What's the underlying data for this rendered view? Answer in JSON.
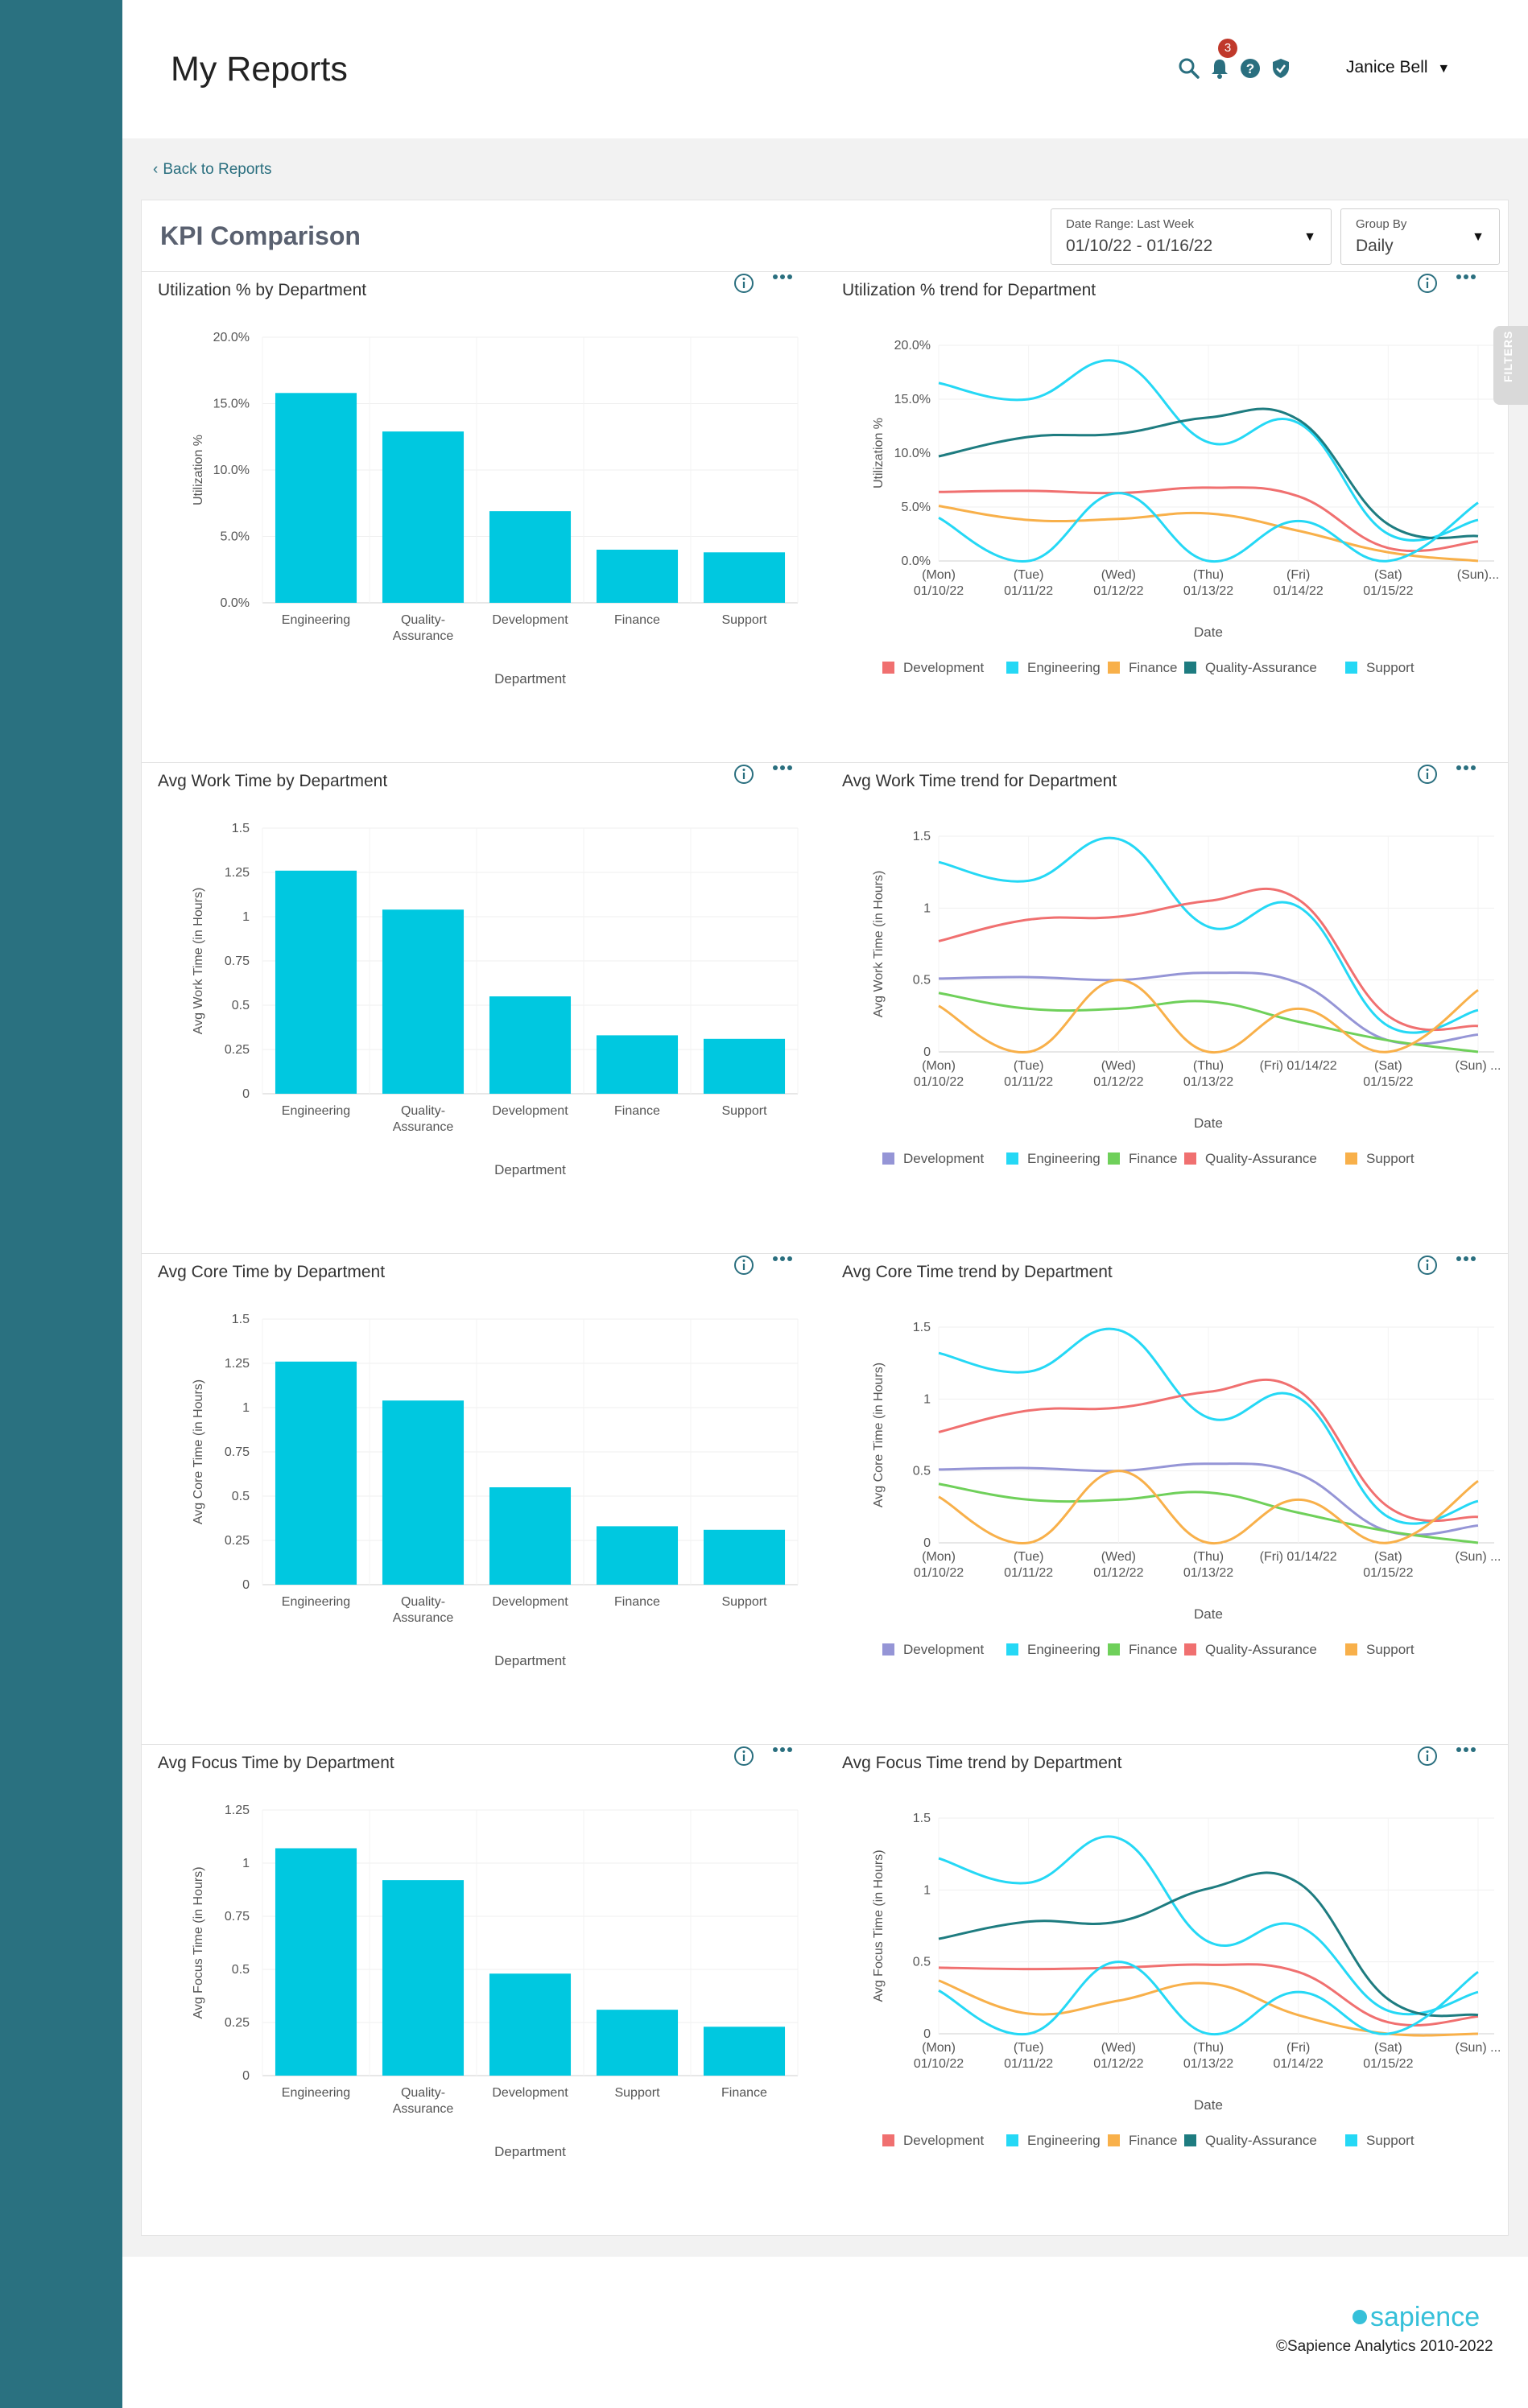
{
  "header": {
    "title": "My Reports",
    "notification_count": "3",
    "user_name": "Janice Bell",
    "icons": [
      "search-icon",
      "bell-icon",
      "help-icon",
      "shield-icon"
    ]
  },
  "back_link": "Back to Reports",
  "report": {
    "title": "KPI Comparison",
    "date_range": {
      "label": "Date Range: Last Week",
      "value": "01/10/22 - 01/16/22"
    },
    "group_by": {
      "label": "Group By",
      "value": "Daily"
    },
    "filters_tab": "FILTERS"
  },
  "colors": {
    "bar": "#00c8e0",
    "Development_purple": "#9595d6",
    "Development_red": "#f07070",
    "Engineering": "#25d8f5",
    "Finance_green": "#6fd05a",
    "Finance_orange": "#f8b04a",
    "Quality-Assurance_teal": "#1e7c80",
    "Quality-Assurance_red": "#f07070",
    "Support_cyan": "#25d8f5",
    "Support_orange": "#f8b04a",
    "sidebar": "#2a7180"
  },
  "chart_data": [
    {
      "id": "util-bar",
      "type": "bar",
      "title": "Utilization % by Department",
      "xlabel": "Department",
      "ylabel": "Utilization %",
      "categories": [
        "Engineering",
        "Quality-Assurance",
        "Development",
        "Finance",
        "Support"
      ],
      "values": [
        15.8,
        12.9,
        6.9,
        4.0,
        3.8
      ],
      "ylim": [
        0,
        20
      ],
      "yticks": [
        "0.0%",
        "5.0%",
        "10.0%",
        "15.0%",
        "20.0%"
      ],
      "ytick_values": [
        0,
        5,
        10,
        15,
        20
      ]
    },
    {
      "id": "util-trend",
      "type": "line",
      "title": "Utilization % trend for Department",
      "xlabel": "Date",
      "ylabel": "Utilization %",
      "x": [
        [
          "(Mon)",
          "01/10/22"
        ],
        [
          "(Tue)",
          "01/11/22"
        ],
        [
          "(Wed)",
          "01/12/22"
        ],
        [
          "(Thu)",
          "01/13/22"
        ],
        [
          "(Fri)",
          "01/14/22"
        ],
        [
          "(Sat)",
          "01/15/22"
        ],
        [
          "(Sun)...",
          ""
        ]
      ],
      "ylim": [
        0,
        20
      ],
      "yticks": [
        "0.0%",
        "5.0%",
        "10.0%",
        "15.0%",
        "20.0%"
      ],
      "ytick_values": [
        0,
        5,
        10,
        15,
        20
      ],
      "series": [
        {
          "name": "Development",
          "color": "#f07070",
          "values": [
            6.4,
            6.5,
            6.3,
            6.8,
            6.0,
            1.2,
            1.8
          ]
        },
        {
          "name": "Engineering",
          "color": "#25d8f5",
          "values": [
            16.5,
            15.0,
            18.5,
            11.0,
            12.8,
            2.5,
            3.8
          ]
        },
        {
          "name": "Finance",
          "color": "#f8b04a",
          "values": [
            5.1,
            3.8,
            3.9,
            4.4,
            2.8,
            0.8,
            0.0
          ]
        },
        {
          "name": "Quality-Assurance",
          "color": "#1e7c80",
          "values": [
            9.7,
            11.5,
            11.8,
            13.3,
            13.1,
            3.4,
            2.3
          ]
        },
        {
          "name": "Support",
          "color": "#25d8f5",
          "values": [
            4.0,
            0.0,
            6.3,
            0.0,
            3.7,
            0.0,
            5.4
          ]
        }
      ]
    },
    {
      "id": "work-bar",
      "type": "bar",
      "title": "Avg Work Time by Department",
      "xlabel": "Department",
      "ylabel": "Avg Work Time (in Hours)",
      "categories": [
        "Engineering",
        "Quality-Assurance",
        "Development",
        "Finance",
        "Support"
      ],
      "values": [
        1.26,
        1.04,
        0.55,
        0.33,
        0.31
      ],
      "ylim": [
        0,
        1.5
      ],
      "yticks": [
        "0",
        "0.25",
        "0.5",
        "0.75",
        "1",
        "1.25",
        "1.5"
      ],
      "ytick_values": [
        0,
        0.25,
        0.5,
        0.75,
        1,
        1.25,
        1.5
      ]
    },
    {
      "id": "work-trend",
      "type": "line",
      "title": "Avg Work Time trend for Department",
      "xlabel": "Date",
      "ylabel": "Avg Work Time (in Hours)",
      "x": [
        [
          "(Mon)",
          "01/10/22"
        ],
        [
          "(Tue)",
          "01/11/22"
        ],
        [
          "(Wed)",
          "01/12/22"
        ],
        [
          "(Thu)",
          "01/13/22"
        ],
        [
          "(Fri) 01/14/22",
          ""
        ],
        [
          "(Sat)",
          "01/15/22"
        ],
        [
          "(Sun) ...",
          ""
        ]
      ],
      "ylim": [
        0,
        1.5
      ],
      "yticks": [
        "0",
        "0.5",
        "1",
        "1.5"
      ],
      "ytick_values": [
        0,
        0.5,
        1,
        1.5
      ],
      "series": [
        {
          "name": "Development",
          "color": "#9595d6",
          "values": [
            0.51,
            0.52,
            0.5,
            0.55,
            0.48,
            0.08,
            0.12
          ]
        },
        {
          "name": "Engineering",
          "color": "#25d8f5",
          "values": [
            1.32,
            1.19,
            1.48,
            0.87,
            1.01,
            0.18,
            0.29
          ]
        },
        {
          "name": "Finance",
          "color": "#6fd05a",
          "values": [
            0.41,
            0.3,
            0.3,
            0.35,
            0.21,
            0.08,
            0.0
          ]
        },
        {
          "name": "Quality-Assurance",
          "color": "#f07070",
          "values": [
            0.77,
            0.92,
            0.94,
            1.05,
            1.06,
            0.25,
            0.18
          ]
        },
        {
          "name": "Support",
          "color": "#f8b04a",
          "values": [
            0.32,
            0.0,
            0.5,
            0.0,
            0.3,
            0.0,
            0.43
          ]
        }
      ]
    },
    {
      "id": "core-bar",
      "type": "bar",
      "title": "Avg Core Time by Department",
      "xlabel": "Department",
      "ylabel": "Avg Core Time (in Hours)",
      "categories": [
        "Engineering",
        "Quality-Assurance",
        "Development",
        "Finance",
        "Support"
      ],
      "values": [
        1.26,
        1.04,
        0.55,
        0.33,
        0.31
      ],
      "ylim": [
        0,
        1.5
      ],
      "yticks": [
        "0",
        "0.25",
        "0.5",
        "0.75",
        "1",
        "1.25",
        "1.5"
      ],
      "ytick_values": [
        0,
        0.25,
        0.5,
        0.75,
        1,
        1.25,
        1.5
      ]
    },
    {
      "id": "core-trend",
      "type": "line",
      "title": "Avg Core Time trend by Department",
      "xlabel": "Date",
      "ylabel": "Avg Core Time (in Hours)",
      "x": [
        [
          "(Mon)",
          "01/10/22"
        ],
        [
          "(Tue)",
          "01/11/22"
        ],
        [
          "(Wed)",
          "01/12/22"
        ],
        [
          "(Thu)",
          "01/13/22"
        ],
        [
          "(Fri) 01/14/22",
          ""
        ],
        [
          "(Sat)",
          "01/15/22"
        ],
        [
          "(Sun) ...",
          ""
        ]
      ],
      "ylim": [
        0,
        1.5
      ],
      "yticks": [
        "0",
        "0.5",
        "1",
        "1.5"
      ],
      "ytick_values": [
        0,
        0.5,
        1,
        1.5
      ],
      "series": [
        {
          "name": "Development",
          "color": "#9595d6",
          "values": [
            0.51,
            0.52,
            0.5,
            0.55,
            0.48,
            0.08,
            0.12
          ]
        },
        {
          "name": "Engineering",
          "color": "#25d8f5",
          "values": [
            1.32,
            1.19,
            1.48,
            0.87,
            1.01,
            0.18,
            0.29
          ]
        },
        {
          "name": "Finance",
          "color": "#6fd05a",
          "values": [
            0.41,
            0.3,
            0.3,
            0.35,
            0.21,
            0.08,
            0.0
          ]
        },
        {
          "name": "Quality-Assurance",
          "color": "#f07070",
          "values": [
            0.77,
            0.92,
            0.94,
            1.05,
            1.06,
            0.25,
            0.18
          ]
        },
        {
          "name": "Support",
          "color": "#f8b04a",
          "values": [
            0.32,
            0.0,
            0.5,
            0.0,
            0.3,
            0.0,
            0.43
          ]
        }
      ]
    },
    {
      "id": "focus-bar",
      "type": "bar",
      "title": "Avg Focus Time by Department",
      "xlabel": "Department",
      "ylabel": "Avg Focus Time (in Hours)",
      "categories": [
        "Engineering",
        "Quality-Assurance",
        "Development",
        "Support",
        "Finance"
      ],
      "values": [
        1.07,
        0.92,
        0.48,
        0.31,
        0.23
      ],
      "ylim": [
        0,
        1.25
      ],
      "yticks": [
        "0",
        "0.25",
        "0.5",
        "0.75",
        "1",
        "1.25"
      ],
      "ytick_values": [
        0,
        0.25,
        0.5,
        0.75,
        1,
        1.25
      ]
    },
    {
      "id": "focus-trend",
      "type": "line",
      "title": "Avg Focus Time trend by Department",
      "xlabel": "Date",
      "ylabel": "Avg Focus Time (in Hours)",
      "x": [
        [
          "(Mon)",
          "01/10/22"
        ],
        [
          "(Tue)",
          "01/11/22"
        ],
        [
          "(Wed)",
          "01/12/22"
        ],
        [
          "(Thu)",
          "01/13/22"
        ],
        [
          "(Fri)",
          "01/14/22"
        ],
        [
          "(Sat)",
          "01/15/22"
        ],
        [
          "(Sun) ...",
          ""
        ]
      ],
      "ylim": [
        0,
        1.5
      ],
      "yticks": [
        "0",
        "0.5",
        "1",
        "1.5"
      ],
      "ytick_values": [
        0,
        0.5,
        1,
        1.5
      ],
      "series": [
        {
          "name": "Development",
          "color": "#f07070",
          "values": [
            0.46,
            0.45,
            0.46,
            0.48,
            0.43,
            0.08,
            0.12
          ]
        },
        {
          "name": "Engineering",
          "color": "#25d8f5",
          "values": [
            1.22,
            1.05,
            1.36,
            0.64,
            0.75,
            0.16,
            0.29
          ]
        },
        {
          "name": "Finance",
          "color": "#f8b04a",
          "values": [
            0.37,
            0.14,
            0.23,
            0.35,
            0.13,
            0.0,
            0.0
          ]
        },
        {
          "name": "Quality-Assurance",
          "color": "#1e7c80",
          "values": [
            0.66,
            0.78,
            0.78,
            1.01,
            1.05,
            0.24,
            0.13
          ]
        },
        {
          "name": "Support",
          "color": "#25d8f5",
          "values": [
            0.3,
            0.0,
            0.5,
            0.0,
            0.29,
            0.0,
            0.43
          ]
        }
      ]
    }
  ],
  "footer": {
    "logo": "sapience",
    "copyright": "©Sapience Analytics 2010-2022"
  }
}
